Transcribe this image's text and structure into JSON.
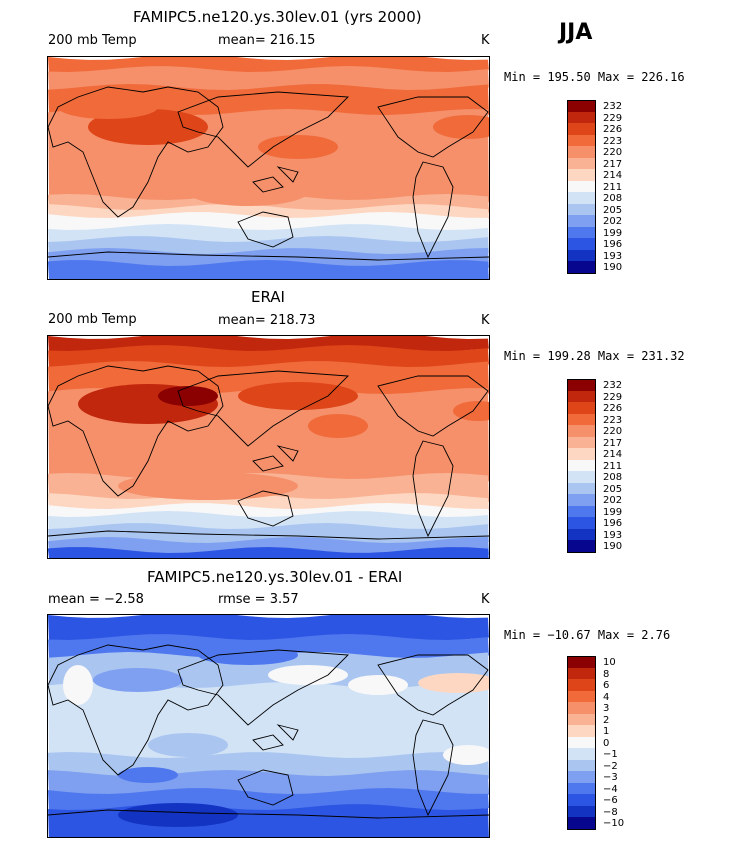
{
  "season": "JJA",
  "panels": [
    {
      "title": "FAMIPC5.ne120.ys.30lev.01 (yrs 2000)",
      "left_label": "200 mb Temp",
      "center_label": "mean= 216.15",
      "units": "K",
      "minmax": "Min = 195.50 Max = 226.16",
      "levels": [
        "232",
        "229",
        "226",
        "223",
        "220",
        "217",
        "214",
        "211",
        "208",
        "205",
        "202",
        "199",
        "196",
        "193",
        "190"
      ],
      "colors": [
        "#8b0000",
        "#c1270c",
        "#de4519",
        "#f06a3a",
        "#f5906b",
        "#f9b394",
        "#fdd7c2",
        "#f8f8f8",
        "#d2e3f6",
        "#aac6f0",
        "#7f9ff0",
        "#4f78ef",
        "#2d55e3",
        "#1333c2",
        "#06068f"
      ],
      "field": "model"
    },
    {
      "title": "ERAI",
      "left_label": "200 mb Temp",
      "center_label": "mean= 218.73",
      "units": "K",
      "minmax": "Min = 199.28 Max = 231.32",
      "levels": [
        "232",
        "229",
        "226",
        "223",
        "220",
        "217",
        "214",
        "211",
        "208",
        "205",
        "202",
        "199",
        "196",
        "193",
        "190"
      ],
      "colors": [
        "#8b0000",
        "#c1270c",
        "#de4519",
        "#f06a3a",
        "#f5906b",
        "#f9b394",
        "#fdd7c2",
        "#f8f8f8",
        "#d2e3f6",
        "#aac6f0",
        "#7f9ff0",
        "#4f78ef",
        "#2d55e3",
        "#1333c2",
        "#06068f"
      ],
      "field": "obs"
    },
    {
      "title": "FAMIPC5.ne120.ys.30lev.01 - ERAI",
      "left_label": "mean =   −2.58",
      "center_label": "rmse =    3.57",
      "units": "K",
      "minmax": "Min = −10.67 Max =    2.76",
      "levels": [
        "10",
        "8",
        "6",
        "4",
        "3",
        "2",
        "1",
        "0",
        "−1",
        "−2",
        "−3",
        "−4",
        "−6",
        "−8",
        "−10"
      ],
      "colors": [
        "#8b0000",
        "#c1270c",
        "#de4519",
        "#f06a3a",
        "#f5906b",
        "#f9b394",
        "#fdd7c2",
        "#f8f8f8",
        "#d2e3f6",
        "#aac6f0",
        "#7f9ff0",
        "#4f78ef",
        "#2d55e3",
        "#1333c2",
        "#06068f"
      ],
      "field": "diff"
    }
  ]
}
